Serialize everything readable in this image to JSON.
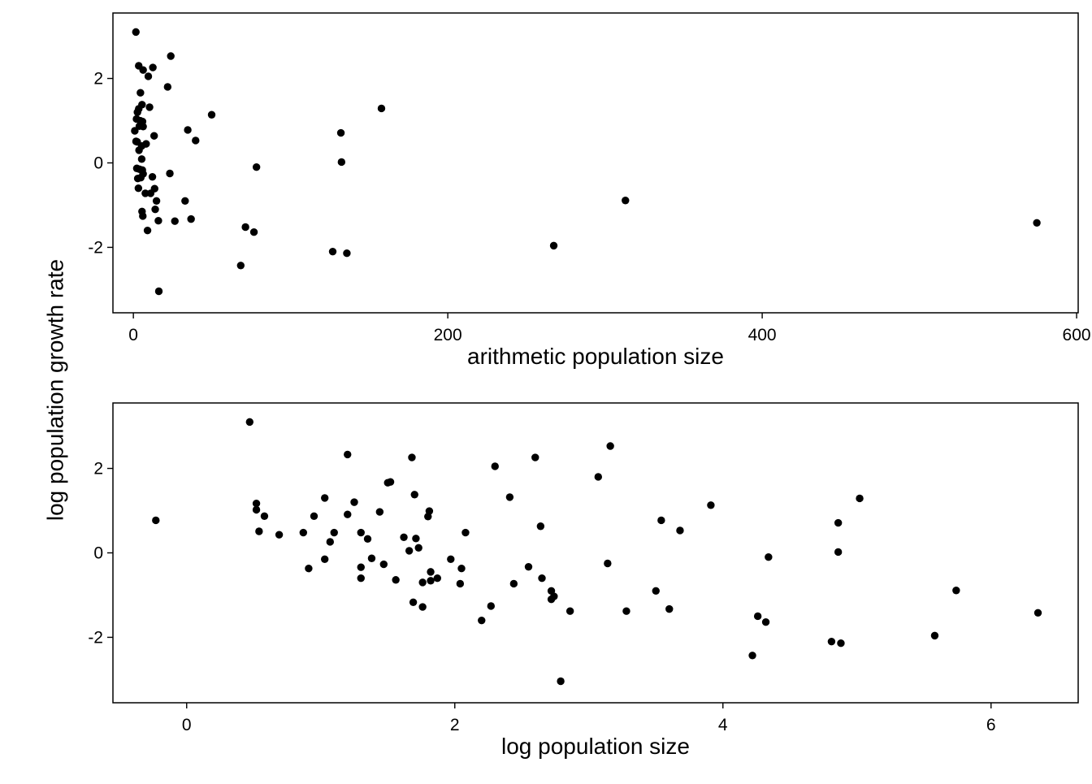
{
  "figure": {
    "shared_ylabel": "log population growth rate"
  },
  "chart_data": [
    {
      "type": "scatter",
      "title": "",
      "xlabel": "arithmetic population size",
      "ylabel": "log population growth rate",
      "xlim": [
        -13,
        601
      ],
      "ylim": [
        -3.55,
        3.55
      ],
      "x_ticks": [
        0,
        200,
        400,
        600
      ],
      "y_ticks": [
        -2,
        0,
        2
      ],
      "grid": false,
      "legend": "none",
      "points": [
        [
          1.6,
          3.1
        ],
        [
          3.4,
          2.3
        ],
        [
          6.2,
          2.2
        ],
        [
          12.4,
          2.26
        ],
        [
          23.8,
          2.53
        ],
        [
          9.5,
          2.05
        ],
        [
          21.8,
          1.8
        ],
        [
          4.5,
          1.66
        ],
        [
          5.5,
          1.38
        ],
        [
          3.4,
          1.28
        ],
        [
          10.3,
          1.32
        ],
        [
          2.6,
          1.2
        ],
        [
          2.0,
          1.04
        ],
        [
          4.4,
          1.0
        ],
        [
          5.8,
          0.98
        ],
        [
          3.8,
          0.87
        ],
        [
          6.2,
          0.86
        ],
        [
          0.9,
          0.76
        ],
        [
          13.2,
          0.64
        ],
        [
          1.7,
          0.51
        ],
        [
          2.4,
          0.5
        ],
        [
          8.1,
          0.45
        ],
        [
          5.3,
          0.4
        ],
        [
          3.6,
          0.3
        ],
        [
          5.3,
          0.09
        ],
        [
          3.9,
          -0.15
        ],
        [
          5.7,
          -0.17
        ],
        [
          2.2,
          -0.13
        ],
        [
          6.2,
          -0.26
        ],
        [
          4.7,
          -0.35
        ],
        [
          13.5,
          -0.61
        ],
        [
          3.2,
          -0.6
        ],
        [
          2.8,
          -0.37
        ],
        [
          12.1,
          -0.33
        ],
        [
          11.0,
          -0.72
        ],
        [
          7.6,
          -0.72
        ],
        [
          5.5,
          -1.15
        ],
        [
          13.9,
          -1.1
        ],
        [
          6.0,
          -1.26
        ],
        [
          9.0,
          -1.6
        ],
        [
          14.7,
          -0.9
        ],
        [
          15.9,
          -1.37
        ],
        [
          23.2,
          -0.25
        ],
        [
          26.4,
          -1.38
        ],
        [
          34.6,
          0.78
        ],
        [
          39.6,
          0.53
        ],
        [
          32.9,
          -0.9
        ],
        [
          36.7,
          -1.33
        ],
        [
          49.8,
          1.14
        ],
        [
          68.3,
          -2.43
        ],
        [
          71.3,
          -1.52
        ],
        [
          76.7,
          -1.64
        ],
        [
          78.3,
          -0.1
        ],
        [
          126.8,
          -2.1
        ],
        [
          132.0,
          0.71
        ],
        [
          132.4,
          0.02
        ],
        [
          135.8,
          -2.14
        ],
        [
          157.8,
          1.29
        ],
        [
          267.4,
          -1.96
        ],
        [
          313.0,
          -0.89
        ],
        [
          574.7,
          -1.42
        ],
        [
          16.2,
          -3.04
        ]
      ]
    },
    {
      "type": "scatter",
      "title": "",
      "xlabel": "log population size",
      "ylabel": "log population growth rate",
      "xlim": [
        -0.55,
        6.65
      ],
      "ylim": [
        -3.55,
        3.55
      ],
      "x_ticks": [
        0,
        2,
        4,
        6
      ],
      "y_ticks": [
        -2,
        0,
        2
      ],
      "grid": false,
      "legend": "none",
      "points": [
        [
          -0.23,
          0.77
        ],
        [
          0.47,
          3.1
        ],
        [
          0.52,
          1.17
        ],
        [
          0.52,
          1.02
        ],
        [
          0.54,
          0.51
        ],
        [
          0.58,
          0.87
        ],
        [
          0.69,
          0.43
        ],
        [
          0.87,
          0.48
        ],
        [
          0.91,
          -0.37
        ],
        [
          0.95,
          0.87
        ],
        [
          1.03,
          -0.15
        ],
        [
          1.03,
          1.3
        ],
        [
          1.07,
          0.26
        ],
        [
          1.1,
          0.48
        ],
        [
          1.2,
          0.91
        ],
        [
          1.2,
          2.33
        ],
        [
          1.25,
          1.2
        ],
        [
          1.3,
          0.48
        ],
        [
          1.3,
          -0.34
        ],
        [
          1.3,
          -0.6
        ],
        [
          1.35,
          0.33
        ],
        [
          1.38,
          -0.13
        ],
        [
          1.44,
          0.97
        ],
        [
          1.47,
          -0.27
        ],
        [
          1.5,
          1.66
        ],
        [
          1.52,
          1.68
        ],
        [
          1.56,
          -0.64
        ],
        [
          1.62,
          0.37
        ],
        [
          1.66,
          0.05
        ],
        [
          1.68,
          2.26
        ],
        [
          1.69,
          -1.17
        ],
        [
          1.7,
          1.38
        ],
        [
          1.71,
          0.34
        ],
        [
          1.73,
          0.12
        ],
        [
          1.76,
          -1.28
        ],
        [
          1.76,
          -0.7
        ],
        [
          1.8,
          0.86
        ],
        [
          1.81,
          0.99
        ],
        [
          1.82,
          -0.45
        ],
        [
          1.82,
          -0.66
        ],
        [
          1.87,
          -0.6
        ],
        [
          1.97,
          -0.15
        ],
        [
          2.04,
          -0.73
        ],
        [
          2.05,
          -0.37
        ],
        [
          2.08,
          0.48
        ],
        [
          2.2,
          -1.6
        ],
        [
          2.27,
          -1.26
        ],
        [
          2.3,
          2.05
        ],
        [
          2.41,
          1.32
        ],
        [
          2.44,
          -0.73
        ],
        [
          2.55,
          -0.33
        ],
        [
          2.6,
          2.26
        ],
        [
          2.64,
          0.63
        ],
        [
          2.65,
          -0.6
        ],
        [
          2.72,
          -0.9
        ],
        [
          2.72,
          -1.1
        ],
        [
          2.74,
          -1.03
        ],
        [
          2.86,
          -1.38
        ],
        [
          3.07,
          1.8
        ],
        [
          3.14,
          -0.25
        ],
        [
          3.16,
          2.53
        ],
        [
          3.28,
          -1.38
        ],
        [
          3.5,
          -0.9
        ],
        [
          3.54,
          0.77
        ],
        [
          3.6,
          -1.33
        ],
        [
          3.68,
          0.53
        ],
        [
          3.91,
          1.13
        ],
        [
          4.22,
          -2.43
        ],
        [
          4.26,
          -1.5
        ],
        [
          4.32,
          -1.64
        ],
        [
          4.34,
          -0.1
        ],
        [
          4.81,
          -2.1
        ],
        [
          4.86,
          0.71
        ],
        [
          4.86,
          0.02
        ],
        [
          4.88,
          -2.14
        ],
        [
          5.02,
          1.29
        ],
        [
          5.58,
          -1.96
        ],
        [
          5.74,
          -0.89
        ],
        [
          6.35,
          -1.42
        ],
        [
          2.79,
          -3.04
        ]
      ]
    }
  ]
}
